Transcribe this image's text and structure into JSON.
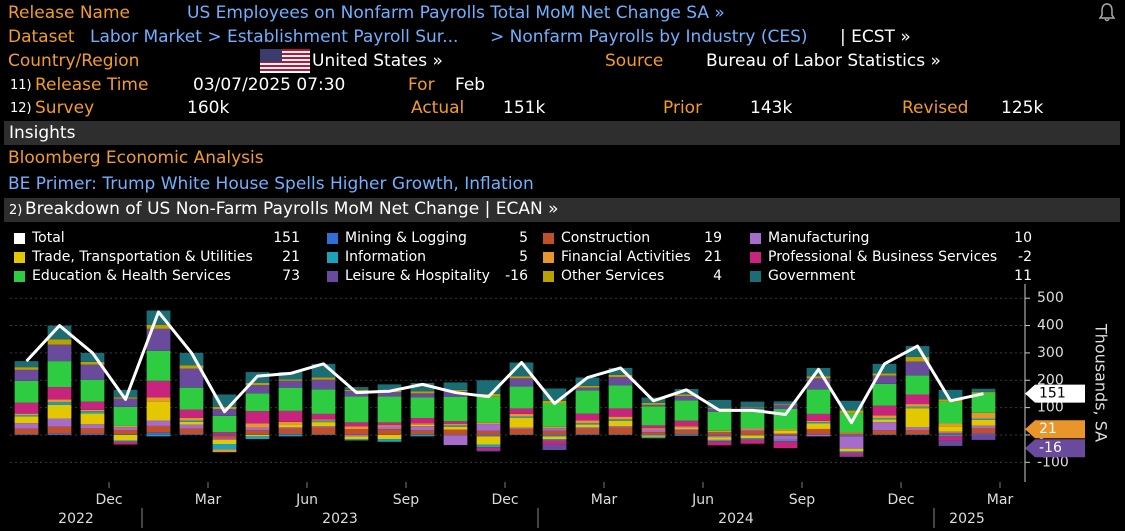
{
  "header": {
    "release_name_label": "Release Name",
    "release_name": "US Employees on Nonfarm Payrolls Total MoM Net Change SA »",
    "dataset_label": "Dataset",
    "dataset_path": "Labor Market > Establishment Payroll Sur...",
    "dataset_sub": "> Nonfarm Payrolls by Industry (CES)",
    "dataset_ticker": "| ECST »",
    "country_label": "Country/Region",
    "country": "United States »",
    "source_label": "Source",
    "source": "Bureau of Labor Statistics »",
    "release_time_num": "11)",
    "release_time_label": "Release Time",
    "release_time": "03/07/2025 07:30",
    "for_label": "For",
    "for_value": "Feb",
    "survey_num": "12)",
    "survey_label": "Survey",
    "survey": "160k",
    "actual_label": "Actual",
    "actual": "151k",
    "prior_label": "Prior",
    "prior": "143k",
    "revised_label": "Revised",
    "revised": "125k"
  },
  "insights": {
    "title": "Insights",
    "analysis": "Bloomberg Economic Analysis",
    "primer": "BE Primer: Trump White House Spells Higher Growth, Inflation"
  },
  "chart_data": {
    "type": "bar",
    "stacked": true,
    "grid": true,
    "menu_num": "2)",
    "title": "Breakdown of US Non-Farm Payrolls MoM Net Change | ECAN »",
    "y_label": "Thousands, SA",
    "ylim": [
      -150,
      530
    ],
    "yticks": [
      500,
      400,
      300,
      200,
      100,
      0,
      -100
    ],
    "x_tick_labels": [
      "Dec",
      "Mar",
      "Jun",
      "Sep",
      "Dec",
      "Mar",
      "Jun",
      "Sep",
      "Dec",
      "Mar"
    ],
    "x_year_labels": [
      "2022",
      "2023",
      "2024",
      "2025"
    ],
    "total": {
      "name": "Total",
      "color": "#ffffff",
      "values": [
        270,
        400,
        300,
        130,
        450,
        300,
        85,
        215,
        225,
        260,
        155,
        160,
        185,
        155,
        140,
        265,
        115,
        210,
        245,
        125,
        165,
        90,
        90,
        75,
        240,
        45,
        260,
        325,
        125,
        151
      ]
    },
    "series": [
      {
        "name": "Mining & Logging",
        "color": "#2f6fd6",
        "values": [
          3,
          5,
          4,
          3,
          8,
          3,
          -3,
          2,
          3,
          2,
          1,
          1,
          2,
          -2,
          -5,
          2,
          -5,
          3,
          2,
          -2,
          2,
          -3,
          -2,
          -3,
          2,
          -5,
          2,
          3,
          2,
          5
        ]
      },
      {
        "name": "Construction",
        "color": "#c0502a",
        "values": [
          20,
          25,
          20,
          15,
          25,
          20,
          -10,
          15,
          20,
          25,
          20,
          20,
          15,
          20,
          15,
          20,
          15,
          20,
          25,
          10,
          15,
          10,
          15,
          5,
          20,
          5,
          15,
          15,
          5,
          19
        ]
      },
      {
        "name": "Manufacturing",
        "color": "#a56cc9",
        "values": [
          20,
          30,
          15,
          10,
          20,
          15,
          -5,
          10,
          5,
          5,
          -5,
          10,
          15,
          -35,
          25,
          5,
          10,
          5,
          5,
          10,
          5,
          -5,
          5,
          -15,
          -5,
          -45,
          30,
          10,
          5,
          10
        ]
      },
      {
        "name": "Trade, Transportation & Utilities",
        "color": "#e3c800",
        "values": [
          25,
          50,
          40,
          -20,
          70,
          10,
          -15,
          -5,
          10,
          15,
          -10,
          -15,
          5,
          10,
          -30,
          35,
          -10,
          10,
          20,
          -5,
          5,
          -10,
          -10,
          10,
          20,
          -10,
          10,
          70,
          20,
          21
        ]
      },
      {
        "name": "Information",
        "color": "#1aa3bb",
        "values": [
          5,
          10,
          8,
          -5,
          -5,
          5,
          -20,
          -10,
          -5,
          5,
          -5,
          -10,
          -5,
          5,
          -10,
          5,
          -5,
          5,
          5,
          -5,
          -3,
          -5,
          -5,
          -5,
          5,
          -5,
          5,
          5,
          -5,
          5
        ]
      },
      {
        "name": "Financial Activities",
        "color": "#e8952a",
        "values": [
          5,
          10,
          5,
          5,
          15,
          10,
          -10,
          15,
          10,
          5,
          10,
          5,
          5,
          5,
          5,
          10,
          5,
          10,
          10,
          5,
          5,
          5,
          5,
          5,
          5,
          5,
          10,
          10,
          10,
          21
        ]
      },
      {
        "name": "Professional & Business Services",
        "color": "#c8237f",
        "values": [
          40,
          45,
          30,
          -10,
          60,
          30,
          10,
          45,
          40,
          20,
          15,
          10,
          20,
          10,
          -10,
          20,
          -15,
          25,
          30,
          10,
          20,
          -15,
          -15,
          -25,
          25,
          -10,
          35,
          35,
          -15,
          -2
        ]
      },
      {
        "name": "Education & Health Services",
        "color": "#2ecc40",
        "values": [
          80,
          95,
          80,
          70,
          110,
          80,
          60,
          65,
          85,
          90,
          95,
          95,
          75,
          90,
          95,
          80,
          85,
          85,
          85,
          70,
          75,
          70,
          70,
          75,
          90,
          70,
          80,
          70,
          80,
          73
        ]
      },
      {
        "name": "Leisure & Hospitality",
        "color": "#6a4a9c",
        "values": [
          40,
          60,
          55,
          30,
          80,
          70,
          25,
          30,
          25,
          35,
          20,
          15,
          15,
          20,
          -5,
          30,
          -20,
          10,
          30,
          5,
          15,
          10,
          5,
          15,
          40,
          -5,
          30,
          50,
          -20,
          -16
        ]
      },
      {
        "name": "Other Services",
        "color": "#b9a100",
        "values": [
          10,
          20,
          10,
          5,
          15,
          12,
          8,
          8,
          5,
          8,
          4,
          5,
          8,
          5,
          10,
          8,
          10,
          7,
          8,
          7,
          6,
          3,
          2,
          3,
          8,
          10,
          8,
          17,
          8,
          4
        ]
      },
      {
        "name": "Government",
        "color": "#1b6d75",
        "values": [
          22,
          50,
          33,
          27,
          52,
          45,
          45,
          40,
          27,
          50,
          10,
          24,
          30,
          27,
          50,
          50,
          45,
          30,
          25,
          20,
          20,
          30,
          20,
          10,
          30,
          35,
          35,
          40,
          35,
          11
        ]
      }
    ]
  }
}
